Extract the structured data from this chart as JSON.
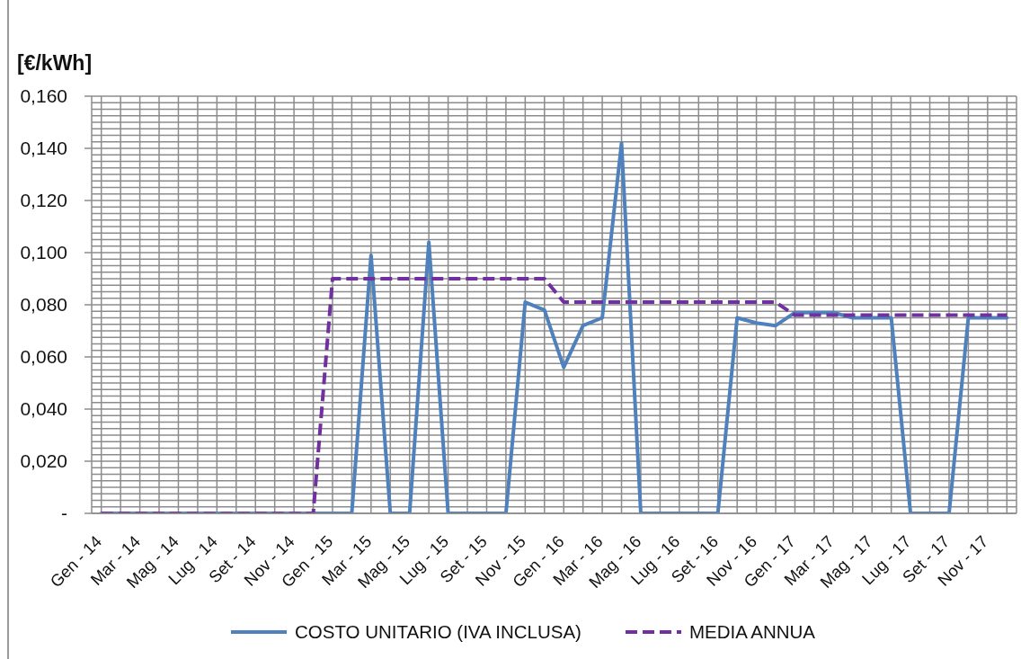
{
  "chart_data": {
    "type": "line",
    "ylabel": "[€/kWh]",
    "categories": [
      "Gen - 14",
      null,
      "Mar - 14",
      null,
      "Mag - 14",
      null,
      "Lug - 14",
      null,
      "Set - 14",
      null,
      "Nov - 14",
      null,
      "Gen - 15",
      null,
      "Mar - 15",
      null,
      "Mag - 15",
      null,
      "Lug - 15",
      null,
      "Set - 15",
      null,
      "Nov - 15",
      null,
      "Gen - 16",
      null,
      "Mar - 16",
      null,
      "Mag - 16",
      null,
      "Lug - 16",
      null,
      "Set - 16",
      null,
      "Nov - 16",
      null,
      "Gen - 17",
      null,
      "Mar - 17",
      null,
      "Mag - 17",
      null,
      "Lug - 17",
      null,
      "Set - 17",
      null,
      "Nov - 17",
      null
    ],
    "series": [
      {
        "name": "COSTO UNITARIO (IVA INCLUSA)",
        "color": "#4f81bd",
        "line_style": "solid",
        "values": [
          0,
          0,
          0,
          0,
          0,
          0,
          0,
          0,
          0,
          0,
          0,
          0,
          0,
          0,
          0.099,
          0,
          0,
          0.104,
          0,
          0,
          0,
          0,
          0.081,
          0.078,
          0.056,
          0.072,
          0.075,
          0.142,
          0,
          0,
          0,
          0,
          0,
          0.075,
          0.073,
          0.072,
          0.077,
          0.077,
          0.077,
          0.075,
          0.075,
          0.075,
          0,
          0,
          0,
          0.075,
          0.075,
          0.075
        ]
      },
      {
        "name": "MEDIA ANNUA",
        "color": "#7030a0",
        "line_style": "dashed",
        "values": [
          0,
          0,
          0,
          0,
          0,
          0,
          0,
          0,
          0,
          0,
          0,
          0,
          0.09,
          0.09,
          0.09,
          0.09,
          0.09,
          0.09,
          0.09,
          0.09,
          0.09,
          0.09,
          0.09,
          0.09,
          0.081,
          0.081,
          0.081,
          0.081,
          0.081,
          0.081,
          0.081,
          0.081,
          0.081,
          0.081,
          0.081,
          0.081,
          0.076,
          0.076,
          0.076,
          0.076,
          0.076,
          0.076,
          0.076,
          0.076,
          0.076,
          0.076,
          0.076,
          0.076
        ]
      }
    ],
    "ylim": [
      0,
      0.16
    ],
    "yticks": [
      {
        "value": 0,
        "label": "-"
      },
      {
        "value": 0.0025,
        "label": null
      },
      {
        "value": 0.005,
        "label": null
      },
      {
        "value": 0.0075,
        "label": null
      },
      {
        "value": 0.01,
        "label": null
      },
      {
        "value": 0.0125,
        "label": null
      },
      {
        "value": 0.015,
        "label": null
      },
      {
        "value": 0.0175,
        "label": null
      },
      {
        "value": 0.02,
        "label": "0,020"
      },
      {
        "value": 0.0225,
        "label": null
      },
      {
        "value": 0.025,
        "label": null
      },
      {
        "value": 0.0275,
        "label": null
      },
      {
        "value": 0.03,
        "label": null
      },
      {
        "value": 0.0325,
        "label": null
      },
      {
        "value": 0.035,
        "label": null
      },
      {
        "value": 0.0375,
        "label": null
      },
      {
        "value": 0.04,
        "label": "0,040"
      },
      {
        "value": 0.0425,
        "label": null
      },
      {
        "value": 0.045,
        "label": null
      },
      {
        "value": 0.0475,
        "label": null
      },
      {
        "value": 0.05,
        "label": null
      },
      {
        "value": 0.0525,
        "label": null
      },
      {
        "value": 0.055,
        "label": null
      },
      {
        "value": 0.0575,
        "label": null
      },
      {
        "value": 0.06,
        "label": "0,060"
      },
      {
        "value": 0.0625,
        "label": null
      },
      {
        "value": 0.065,
        "label": null
      },
      {
        "value": 0.0675,
        "label": null
      },
      {
        "value": 0.07,
        "label": null
      },
      {
        "value": 0.0725,
        "label": null
      },
      {
        "value": 0.075,
        "label": null
      },
      {
        "value": 0.0775,
        "label": null
      },
      {
        "value": 0.08,
        "label": "0,080"
      },
      {
        "value": 0.0825,
        "label": null
      },
      {
        "value": 0.085,
        "label": null
      },
      {
        "value": 0.0875,
        "label": null
      },
      {
        "value": 0.09,
        "label": null
      },
      {
        "value": 0.0925,
        "label": null
      },
      {
        "value": 0.095,
        "label": null
      },
      {
        "value": 0.0975,
        "label": null
      },
      {
        "value": 0.1,
        "label": "0,100"
      },
      {
        "value": 0.1025,
        "label": null
      },
      {
        "value": 0.105,
        "label": null
      },
      {
        "value": 0.1075,
        "label": null
      },
      {
        "value": 0.11,
        "label": null
      },
      {
        "value": 0.1125,
        "label": null
      },
      {
        "value": 0.115,
        "label": null
      },
      {
        "value": 0.1175,
        "label": null
      },
      {
        "value": 0.12,
        "label": "0,120"
      },
      {
        "value": 0.1225,
        "label": null
      },
      {
        "value": 0.125,
        "label": null
      },
      {
        "value": 0.1275,
        "label": null
      },
      {
        "value": 0.13,
        "label": null
      },
      {
        "value": 0.1325,
        "label": null
      },
      {
        "value": 0.135,
        "label": null
      },
      {
        "value": 0.1375,
        "label": null
      },
      {
        "value": 0.14,
        "label": "0,140"
      },
      {
        "value": 0.1425,
        "label": null
      },
      {
        "value": 0.145,
        "label": null
      },
      {
        "value": 0.1475,
        "label": null
      },
      {
        "value": 0.15,
        "label": null
      },
      {
        "value": 0.1525,
        "label": null
      },
      {
        "value": 0.155,
        "label": null
      },
      {
        "value": 0.1575,
        "label": null
      },
      {
        "value": 0.16,
        "label": "0,160"
      }
    ],
    "grid": true,
    "legend": "bottom"
  }
}
